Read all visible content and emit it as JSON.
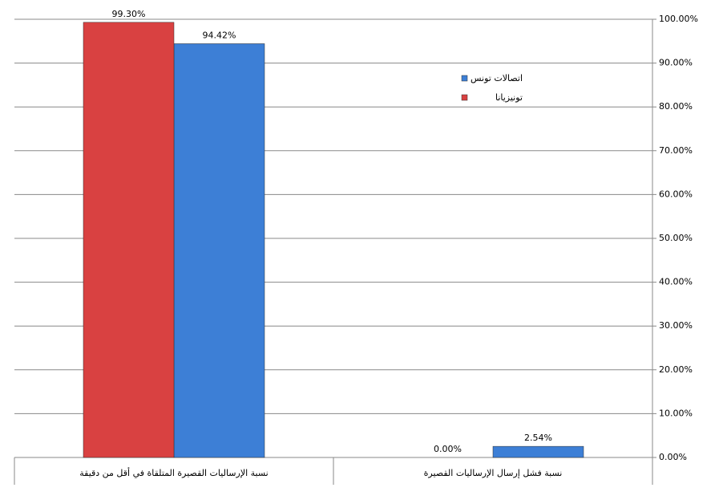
{
  "chart_data": {
    "type": "bar",
    "categories": [
      "نسبة الإرساليات القصيرة المتلقاة في أقل من دقيقة",
      "نسبة فشل إرسال الإرساليات القصيرة"
    ],
    "series": [
      {
        "name": "اتصالات تونس",
        "color": "#3d7fd6",
        "values": [
          94.42,
          2.54
        ],
        "value_labels": [
          "94.42%",
          "2.54%"
        ]
      },
      {
        "name": "تونيزيانا",
        "color": "#d94141",
        "values": [
          99.3,
          0.0
        ],
        "value_labels": [
          "99.30%",
          "0.00%"
        ]
      }
    ],
    "ylim": [
      0,
      100
    ],
    "yticks": [
      {
        "value": 0,
        "label": "0.00%"
      },
      {
        "value": 10,
        "label": "10.00%"
      },
      {
        "value": 20,
        "label": "20.00%"
      },
      {
        "value": 30,
        "label": "30.00%"
      },
      {
        "value": 40,
        "label": "40.00%"
      },
      {
        "value": 50,
        "label": "50.00%"
      },
      {
        "value": 60,
        "label": "60.00%"
      },
      {
        "value": 70,
        "label": "70.00%"
      },
      {
        "value": 80,
        "label": "80.00%"
      },
      {
        "value": 90,
        "label": "90.00%"
      },
      {
        "value": 100,
        "label": "100.00%"
      }
    ],
    "grid": true
  }
}
